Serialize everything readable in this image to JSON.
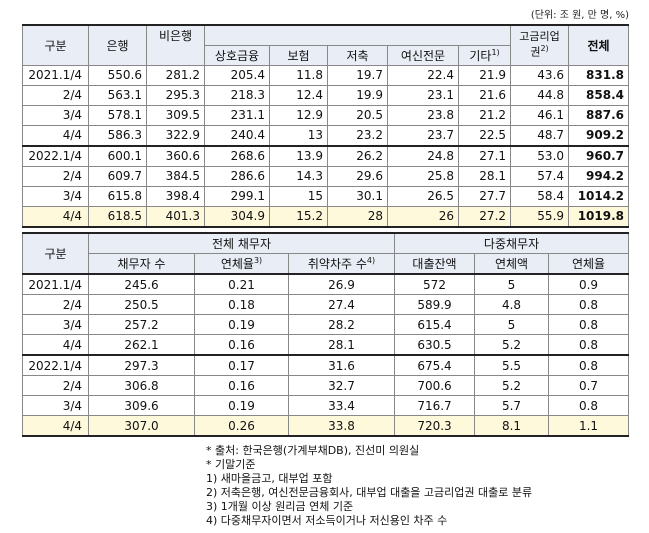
{
  "unit_note": "(단위: 조 원, 만 명, %)",
  "table1": {
    "headers": {
      "category": "구분",
      "bank": "은행",
      "nonbank": "비은행",
      "mutual": "상호금융",
      "insurance": "보험",
      "savings": "저축",
      "credit": "여신전문",
      "other": "기타",
      "other_sup": "1)",
      "highrate": "고금리업권",
      "highrate_sup": "2)",
      "total": "전체"
    },
    "rows": [
      [
        "2021.1/4",
        "550.6",
        "281.2",
        "205.4",
        "11.8",
        "19.7",
        "22.4",
        "21.9",
        "43.6",
        "831.8"
      ],
      [
        "2/4",
        "563.1",
        "295.3",
        "218.3",
        "12.4",
        "19.9",
        "23.1",
        "21.6",
        "44.8",
        "858.4"
      ],
      [
        "3/4",
        "578.1",
        "309.5",
        "231.1",
        "12.9",
        "20.5",
        "23.8",
        "21.2",
        "46.1",
        "887.6"
      ],
      [
        "4/4",
        "586.3",
        "322.9",
        "240.4",
        "13",
        "23.2",
        "23.7",
        "22.5",
        "48.7",
        "909.2"
      ],
      [
        "2022.1/4",
        "600.1",
        "360.6",
        "268.6",
        "13.9",
        "26.2",
        "24.8",
        "27.1",
        "53.0",
        "960.7"
      ],
      [
        "2/4",
        "609.7",
        "384.5",
        "286.6",
        "14.3",
        "29.6",
        "25.8",
        "28.1",
        "57.4",
        "994.2"
      ],
      [
        "3/4",
        "615.8",
        "398.4",
        "299.1",
        "15",
        "30.1",
        "26.5",
        "27.7",
        "58.4",
        "1014.2"
      ],
      [
        "4/4",
        "618.5",
        "401.3",
        "304.9",
        "15.2",
        "28",
        "26",
        "27.2",
        "55.9",
        "1019.8"
      ]
    ]
  },
  "table2": {
    "headers": {
      "category": "구분",
      "all_debtors": "전체 채무자",
      "multi_debtors": "다중채무자",
      "debtor_count": "채무자 수",
      "delinquency_rate": "연체율",
      "delinquency_sup": "3)",
      "vulnerable_count": "취약차주 수",
      "vulnerable_sup": "4)",
      "loan_balance": "대출잔액",
      "overdue_amount": "연체액",
      "multi_delinquency_rate": "연체율"
    },
    "rows": [
      [
        "2021.1/4",
        "245.6",
        "0.21",
        "26.9",
        "572",
        "5",
        "0.9"
      ],
      [
        "2/4",
        "250.5",
        "0.18",
        "27.4",
        "589.9",
        "4.8",
        "0.8"
      ],
      [
        "3/4",
        "257.2",
        "0.19",
        "28.2",
        "615.4",
        "5",
        "0.8"
      ],
      [
        "4/4",
        "262.1",
        "0.16",
        "28.1",
        "630.5",
        "5.2",
        "0.8"
      ],
      [
        "2022.1/4",
        "297.3",
        "0.17",
        "31.6",
        "675.4",
        "5.5",
        "0.8"
      ],
      [
        "2/4",
        "306.8",
        "0.16",
        "32.7",
        "700.6",
        "5.2",
        "0.7"
      ],
      [
        "3/4",
        "309.6",
        "0.19",
        "33.4",
        "716.7",
        "5.7",
        "0.8"
      ],
      [
        "4/4",
        "307.0",
        "0.26",
        "33.8",
        "720.3",
        "8.1",
        "1.1"
      ]
    ]
  },
  "notes": [
    "* 출처: 한국은행(가계부채DB), 진선미 의원실",
    "* 기말기준",
    "1) 새마을금고, 대부업 포함",
    "2) 저축은행, 여신전문금융회사, 대부업 대출을 고금리업권 대출로 분류",
    "3) 1개월 이상 원리금 연체 기준",
    "4) 다중채무자이면서 저소득이거나 저신용인 차주 수"
  ]
}
